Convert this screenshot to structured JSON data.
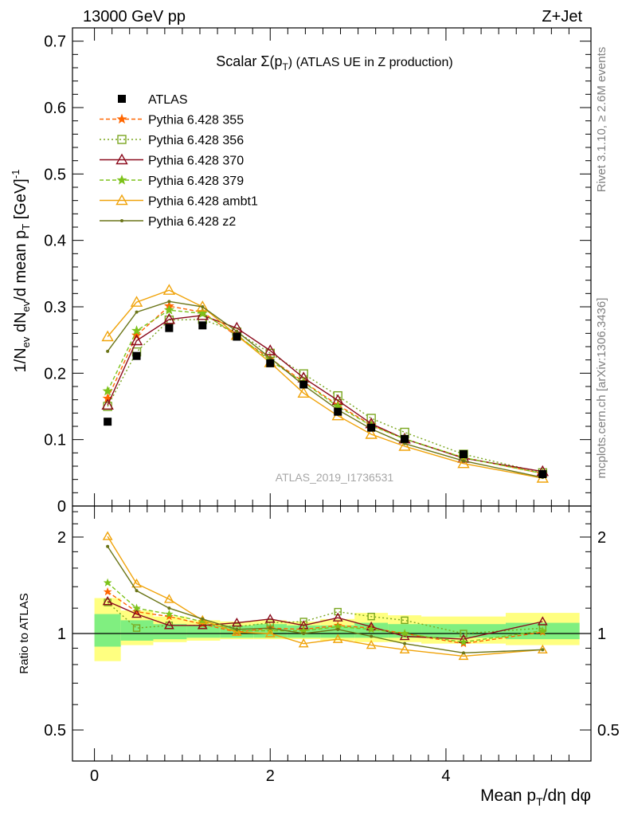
{
  "header": {
    "energy": "13000 GeV pp",
    "process": "Z+Jet"
  },
  "side_text": {
    "rivet": "Rivet 3.1.10, ≥ 2.6M events",
    "mcplots": "mcplots.cern.ch [arXiv:1306.3436]"
  },
  "chart_data": [
    {
      "type": "line",
      "title": "Scalar Σ(p_T) (ATLAS UE in Z production)",
      "title_main": "Scalar Σ(p",
      "title_sub": "T",
      "title_rest": ") (ATLAS UE in Z production)",
      "ylabel": "1/N_ev dN_ev/d mean p_T [GeV]^-1",
      "ylabel_parts": {
        "a": "1/N",
        "b": "ev",
        "c": " dN",
        "d": "ev",
        "e": "/d mean p",
        "f": "T",
        "g": " [GeV]",
        "h": "-1"
      },
      "watermark": "ATLAS_2019_I1736531",
      "xlim": [
        -0.25,
        5.65
      ],
      "ylim": [
        0,
        0.72
      ],
      "yticks": [
        0,
        0.1,
        0.2,
        0.3,
        0.4,
        0.5,
        0.6,
        0.7
      ],
      "ytick_labels": [
        "0",
        "0.1",
        "0.2",
        "0.3",
        "0.4",
        "0.5",
        "0.6",
        "0.7"
      ],
      "x": [
        0.15,
        0.48,
        0.85,
        1.23,
        1.62,
        2.0,
        2.38,
        2.77,
        3.15,
        3.53,
        4.2,
        5.1
      ],
      "data": {
        "name": "ATLAS",
        "values": [
          0.127,
          0.226,
          0.268,
          0.272,
          0.255,
          0.215,
          0.183,
          0.142,
          0.118,
          0.101,
          0.078,
          0.048
        ]
      },
      "series": [
        {
          "name": "Pythia 6.428 355",
          "color": "#ff6600",
          "dash": "5,3",
          "marker": "star",
          "values": [
            0.162,
            0.257,
            0.301,
            0.292,
            0.256,
            0.222,
            0.187,
            0.152,
            0.122,
            0.101,
            0.073,
            0.049
          ]
        },
        {
          "name": "Pythia 6.428 356",
          "color": "#7aa61f",
          "dash": "2,3",
          "marker": "square-open",
          "values": [
            0.15,
            0.232,
            0.28,
            0.281,
            0.262,
            0.23,
            0.199,
            0.166,
            0.132,
            0.111,
            0.078,
            0.05
          ]
        },
        {
          "name": "Pythia 6.428 370",
          "color": "#8b0a1c",
          "dash": "",
          "marker": "triangle-open",
          "values": [
            0.152,
            0.249,
            0.281,
            0.287,
            0.268,
            0.234,
            0.193,
            0.159,
            0.124,
            0.101,
            0.072,
            0.052
          ]
        },
        {
          "name": "Pythia 6.428 379",
          "color": "#7dc21a",
          "dash": "5,3",
          "marker": "star",
          "values": [
            0.173,
            0.264,
            0.295,
            0.29,
            0.258,
            0.219,
            0.186,
            0.15,
            0.121,
            0.101,
            0.073,
            0.049
          ]
        },
        {
          "name": "Pythia 6.428 ambt1",
          "color": "#f0a30a",
          "dash": "",
          "marker": "triangle-open",
          "values": [
            0.255,
            0.307,
            0.325,
            0.3,
            0.257,
            0.216,
            0.17,
            0.136,
            0.108,
            0.09,
            0.064,
            0.042
          ]
        },
        {
          "name": "Pythia 6.428 z2",
          "color": "#6b7518",
          "dash": "",
          "marker": "dot",
          "values": [
            0.233,
            0.292,
            0.308,
            0.3,
            0.263,
            0.223,
            0.182,
            0.145,
            0.116,
            0.094,
            0.068,
            0.043
          ]
        }
      ]
    },
    {
      "type": "line",
      "title": "",
      "ylabel": "Ratio to ATLAS",
      "xlabel": "Mean p_T/dη dφ",
      "xlabel_parts": {
        "a": "Mean p",
        "b": "T",
        "c": "/dη dφ"
      },
      "xlim": [
        -0.25,
        5.65
      ],
      "ylim": [
        0.4,
        2.5
      ],
      "yscale": "log",
      "yticks": [
        0.5,
        1,
        2
      ],
      "ytick_labels": [
        "0.5",
        "1",
        "2"
      ],
      "xticks": [
        0,
        2,
        4
      ],
      "xtick_labels": [
        "0",
        "2",
        "4"
      ],
      "bins": [
        [
          0.0,
          0.3
        ],
        [
          0.3,
          0.67
        ],
        [
          0.67,
          1.05
        ],
        [
          1.05,
          1.43
        ],
        [
          1.43,
          1.81
        ],
        [
          1.81,
          2.19
        ],
        [
          2.19,
          2.57
        ],
        [
          2.57,
          2.96
        ],
        [
          2.96,
          3.34
        ],
        [
          3.34,
          3.72
        ],
        [
          3.72,
          4.68
        ],
        [
          4.68,
          5.52
        ]
      ],
      "band_green": [
        [
          0.91,
          1.15
        ],
        [
          0.95,
          1.1
        ],
        [
          0.96,
          1.07
        ],
        [
          0.97,
          1.06
        ],
        [
          0.97,
          1.06
        ],
        [
          0.97,
          1.07
        ],
        [
          0.97,
          1.06
        ],
        [
          0.97,
          1.06
        ],
        [
          0.97,
          1.08
        ],
        [
          0.97,
          1.07
        ],
        [
          0.97,
          1.07
        ],
        [
          0.96,
          1.08
        ]
      ],
      "band_yellow": [
        [
          0.82,
          1.29
        ],
        [
          0.92,
          1.18
        ],
        [
          0.94,
          1.13
        ],
        [
          0.95,
          1.1
        ],
        [
          0.96,
          1.09
        ],
        [
          0.96,
          1.1
        ],
        [
          0.96,
          1.09
        ],
        [
          0.95,
          1.11
        ],
        [
          0.94,
          1.16
        ],
        [
          0.94,
          1.14
        ],
        [
          0.93,
          1.13
        ],
        [
          0.92,
          1.16
        ]
      ],
      "series": [
        {
          "name": "Pythia 6.428 355",
          "values": [
            1.35,
            1.17,
            1.13,
            1.07,
            1.01,
            1.04,
            1.03,
            1.06,
            1.04,
            1.0,
            0.93,
            1.01
          ]
        },
        {
          "name": "Pythia 6.428 356",
          "values": [
            1.25,
            1.04,
            1.06,
            1.06,
            1.05,
            1.08,
            1.09,
            1.17,
            1.13,
            1.1,
            1.0,
            1.04
          ]
        },
        {
          "name": "Pythia 6.428 370",
          "values": [
            1.26,
            1.15,
            1.06,
            1.06,
            1.08,
            1.11,
            1.06,
            1.12,
            1.05,
            0.98,
            0.96,
            1.09
          ]
        },
        {
          "name": "Pythia 6.428 379",
          "values": [
            1.44,
            1.2,
            1.15,
            1.09,
            1.02,
            1.02,
            1.02,
            1.05,
            1.03,
            1.0,
            0.94,
            1.02
          ]
        },
        {
          "name": "Pythia 6.428 ambt1",
          "values": [
            2.01,
            1.43,
            1.28,
            1.1,
            1.01,
            1.0,
            0.93,
            0.96,
            0.92,
            0.89,
            0.85,
            0.89
          ]
        },
        {
          "name": "Pythia 6.428 z2",
          "values": [
            1.87,
            1.36,
            1.2,
            1.11,
            1.03,
            1.04,
            1.0,
            1.03,
            0.98,
            0.93,
            0.87,
            0.89
          ]
        }
      ]
    }
  ]
}
